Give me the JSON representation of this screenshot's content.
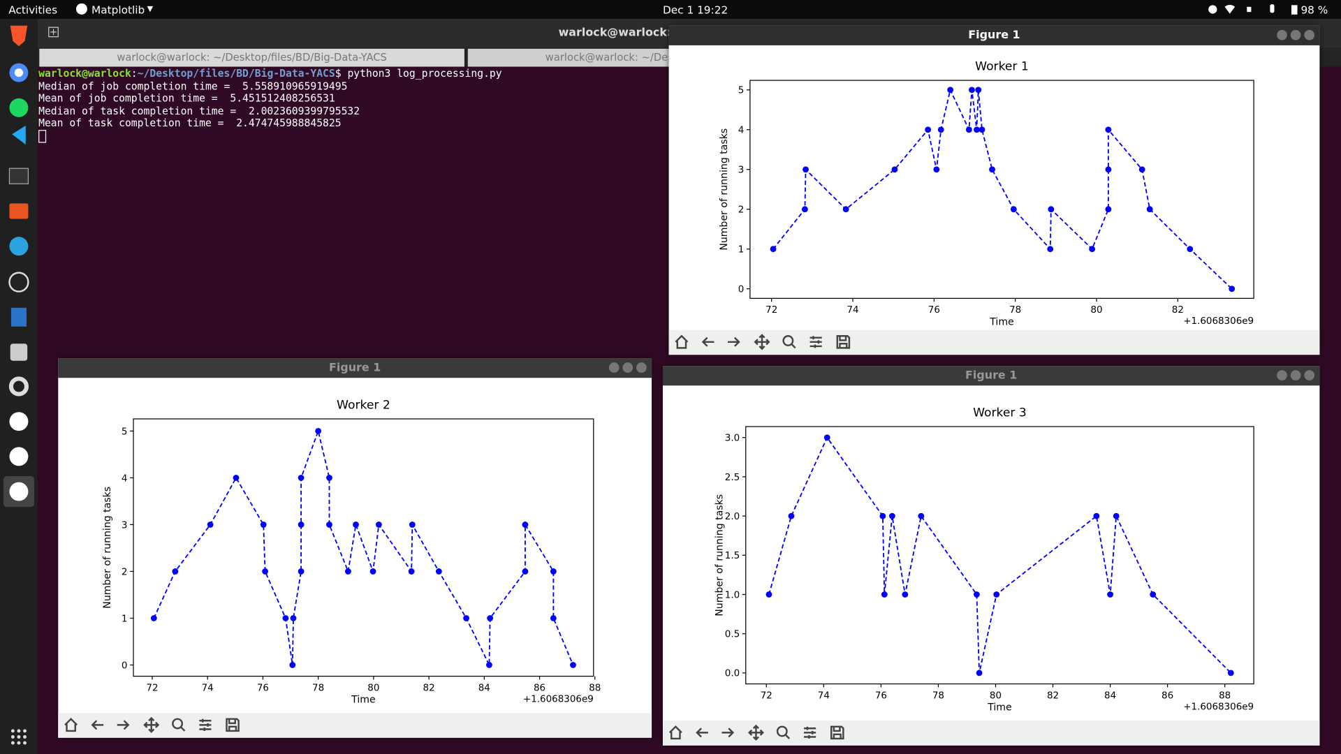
{
  "topbar": {
    "activities": "Activities",
    "app_menu": "Matplotlib",
    "clock": "Dec 1  19:22",
    "battery": "98 %"
  },
  "terminal": {
    "title": "warlock@warlock: ~/Desktop/files/BD/Big-Data-YACS",
    "tabs": [
      "warlock@warlock: ~/Desktop/files/BD/Big-Data-YACS",
      "warlock@warlock: ~/Desktop/files/BD/Big-Data-YACS"
    ],
    "prompt": {
      "user": "warlock@warlock",
      "sep": ":",
      "path": "~/Desktop/files/BD/Big-Data-YACS",
      "command": "$ python3 log_processing.py"
    },
    "output": [
      "Median of job completion time =  5.558910965919495",
      "Mean of job completion time =  5.451512408256531",
      "Median of task completion time =  2.0023609399795532",
      "Mean of task completion time =  2.474745988845825"
    ]
  },
  "windows": [
    {
      "title": "Figure 1"
    },
    {
      "title": "Figure 1"
    },
    {
      "title": "Figure 1"
    }
  ],
  "chart_data": [
    {
      "type": "line",
      "title": "Worker 1",
      "x_label": "Time",
      "y_label": "Number of running tasks",
      "x_offset_label": "+1.6068306e9",
      "color": "#0000ff",
      "line_style": "dashed",
      "x": [
        72.04,
        72.82,
        72.84,
        73.83,
        75.03,
        75.85,
        76.06,
        76.17,
        76.4,
        76.86,
        76.93,
        77.05,
        77.09,
        77.18,
        77.43,
        77.96,
        78.86,
        78.88,
        79.89,
        80.29,
        80.29,
        80.29,
        81.12,
        81.31,
        82.3,
        83.33
      ],
      "values": [
        1,
        2,
        3,
        2,
        3,
        4,
        3,
        4,
        5,
        4,
        5,
        4,
        5,
        4,
        3,
        2,
        1,
        2,
        1,
        2,
        3,
        4,
        3,
        2,
        1,
        0
      ],
      "xlim": [
        71.47,
        83.87
      ],
      "ylim": [
        -0.24,
        5.24
      ],
      "xticks": [
        72,
        74,
        76,
        78,
        80,
        82
      ],
      "yticks": [
        0,
        1,
        2,
        3,
        4,
        5
      ]
    },
    {
      "type": "line",
      "title": "Worker 2",
      "x_label": "Time",
      "y_label": "Number of running tasks",
      "x_offset_label": "+1.6068306e9",
      "color": "#0000ff",
      "line_style": "dashed",
      "x": [
        72.06,
        72.83,
        74.1,
        75.03,
        76.02,
        76.08,
        76.82,
        77.07,
        77.1,
        77.38,
        77.38,
        77.38,
        78.0,
        78.4,
        78.4,
        79.08,
        79.36,
        79.98,
        80.19,
        81.37,
        81.4,
        82.36,
        83.35,
        84.18,
        84.21,
        85.48,
        85.48,
        86.5,
        86.5,
        87.21
      ],
      "values": [
        1,
        2,
        3,
        4,
        3,
        2,
        1,
        0,
        1,
        2,
        3,
        4,
        5,
        4,
        3,
        2,
        3,
        2,
        3,
        2,
        3,
        2,
        1,
        0,
        1,
        2,
        3,
        2,
        1,
        0
      ],
      "xlim": [
        71.32,
        87.95
      ],
      "ylim": [
        -0.24,
        5.26
      ],
      "xticks": [
        72,
        74,
        76,
        78,
        80,
        82,
        84,
        86,
        88
      ],
      "yticks": [
        0,
        1,
        2,
        3,
        4,
        5
      ]
    },
    {
      "type": "line",
      "title": "Worker 3",
      "x_label": "Time",
      "y_label": "Number of running tasks",
      "x_offset_label": "+1.6068306e9",
      "color": "#0000ff",
      "line_style": "dashed",
      "x": [
        72.09,
        72.87,
        74.12,
        76.06,
        76.12,
        76.39,
        76.84,
        77.4,
        79.34,
        79.43,
        80.03,
        83.52,
        84.0,
        84.21,
        85.49,
        88.21
      ],
      "values": [
        1,
        2,
        3,
        2,
        1,
        2,
        1,
        2,
        1,
        0,
        1,
        2,
        1,
        2,
        1,
        0
      ],
      "xlim": [
        71.28,
        89.01
      ],
      "ylim": [
        -0.14,
        3.14
      ],
      "xticks": [
        72,
        74,
        76,
        78,
        80,
        82,
        84,
        86,
        88
      ],
      "yticks": [
        {
          "value": 0,
          "label": "0.0"
        },
        {
          "value": 0.5,
          "label": "0.5"
        },
        {
          "value": 1,
          "label": "1.0"
        },
        {
          "value": 1.5,
          "label": "1.5"
        },
        {
          "value": 2,
          "label": "2.0"
        },
        {
          "value": 2.5,
          "label": "2.5"
        },
        {
          "value": 3,
          "label": "3.0"
        }
      ]
    }
  ]
}
